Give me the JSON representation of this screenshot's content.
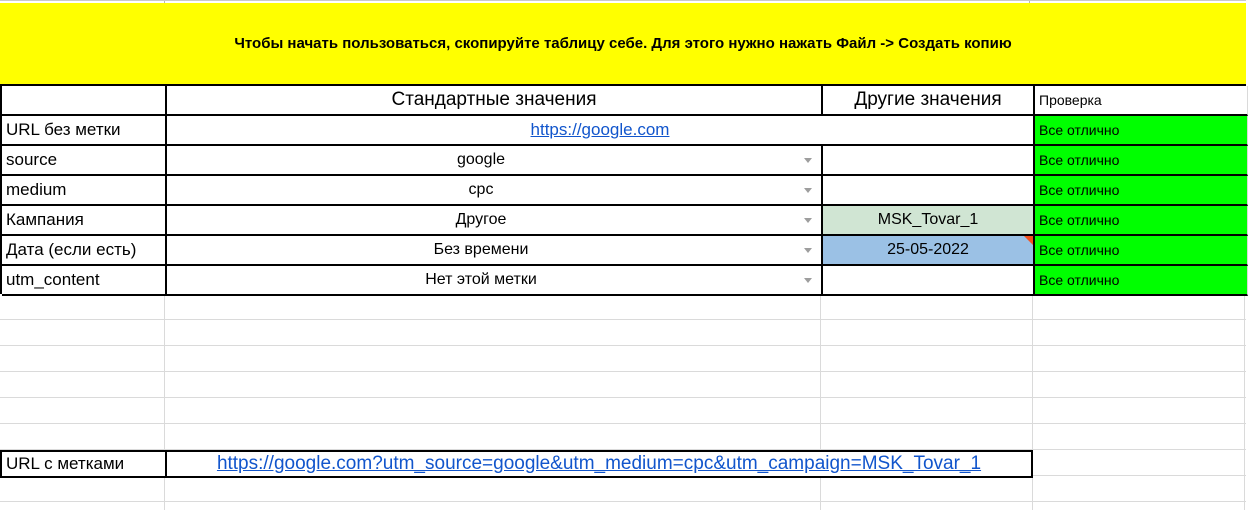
{
  "banner": {
    "text": "Чтобы начать пользоваться, скопируйте таблицу себе. Для этого нужно нажать Файл -> Создать копию"
  },
  "header": {
    "standard": "Стандартные значения",
    "other": "Другие значения",
    "check": "Проверка"
  },
  "rows": [
    {
      "label": "URL без метки",
      "standard": "https://google.com",
      "other": "",
      "check": "Все отлично"
    },
    {
      "label": "source",
      "standard": "google",
      "other": "",
      "check": "Все отлично"
    },
    {
      "label": "medium",
      "standard": "cpc",
      "other": "",
      "check": "Все отлично"
    },
    {
      "label": "Кампания",
      "standard": "Другое",
      "other": "MSK_Tovar_1",
      "check": "Все отлично"
    },
    {
      "label": "Дата (если есть)",
      "standard": "Без времени",
      "other": "25-05-2022",
      "check": "Все отлично"
    },
    {
      "label": "utm_content",
      "standard": "Нет этой метки",
      "other": "",
      "check": "Все отлично"
    }
  ],
  "result": {
    "label": "URL с метками",
    "url": "https://google.com?utm_source=google&utm_medium=cpc&utm_campaign=MSK_Tovar_1"
  },
  "colors": {
    "banner_bg": "#ffff00",
    "check_ok_bg": "#00ff00",
    "campaign_other_bg": "#d0e5d3",
    "date_other_bg": "#9bc1e5",
    "comment_marker": "#f4511e",
    "link": "#1155cc"
  }
}
